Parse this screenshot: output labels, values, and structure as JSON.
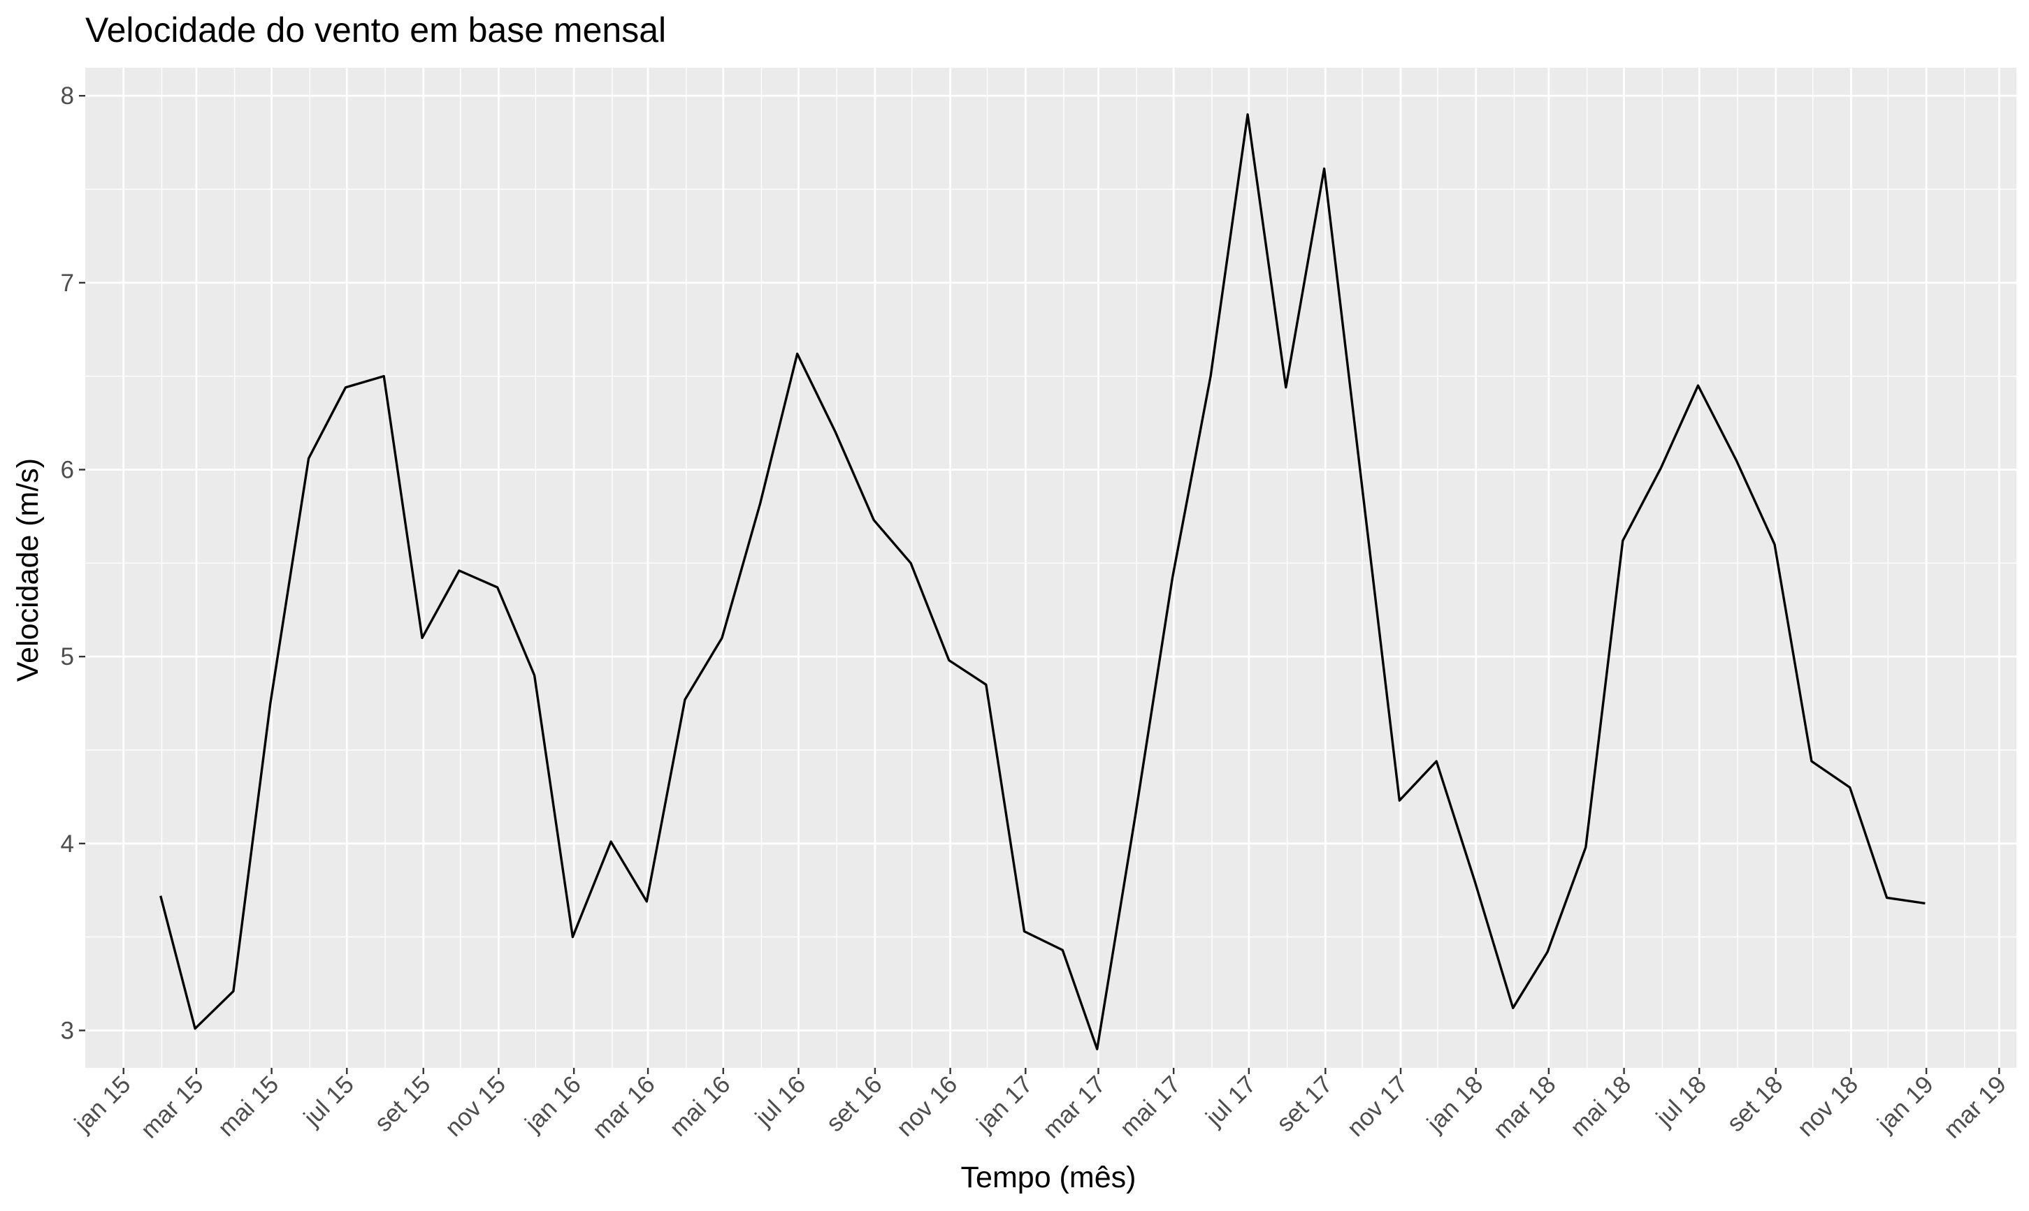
{
  "chart_data": {
    "type": "line",
    "title": "Velocidade do vento em base mensal",
    "xlabel": "Tempo (mês)",
    "ylabel": "Velocidade (m/s)",
    "x_ticks": [
      "jan 15",
      "mar 15",
      "mai 15",
      "jul 15",
      "set 15",
      "nov 15",
      "jan 16",
      "mar 16",
      "mai 16",
      "jul 16",
      "set 16",
      "nov 16",
      "jan 17",
      "mar 17",
      "mai 17",
      "jul 17",
      "set 17",
      "nov 17",
      "jan 18",
      "mar 18",
      "mai 18",
      "jul 18",
      "set 18",
      "nov 18",
      "jan 19",
      "mar 19"
    ],
    "y_ticks": [
      "3",
      "4",
      "5",
      "6",
      "7",
      "8"
    ],
    "xlim": [
      "2014-12-01",
      "2019-03-15"
    ],
    "ylim": [
      2.8,
      8.15
    ],
    "grid": true,
    "panel_background": "#ebebeb",
    "grid_color": "#ffffff",
    "line_color": "#000000",
    "x": [
      "2015-01-31",
      "2015-02-28",
      "2015-03-31",
      "2015-04-30",
      "2015-05-31",
      "2015-06-30",
      "2015-07-31",
      "2015-08-31",
      "2015-09-30",
      "2015-10-31",
      "2015-11-30",
      "2015-12-31",
      "2016-01-31",
      "2016-02-29",
      "2016-03-31",
      "2016-04-30",
      "2016-05-31",
      "2016-06-30",
      "2016-07-31",
      "2016-08-31",
      "2016-09-30",
      "2016-10-31",
      "2016-11-30",
      "2016-12-31",
      "2017-01-31",
      "2017-02-28",
      "2017-03-31",
      "2017-04-30",
      "2017-05-31",
      "2017-06-30",
      "2017-07-31",
      "2017-08-31",
      "2017-09-30",
      "2017-10-31",
      "2017-11-30",
      "2017-12-31",
      "2018-01-31",
      "2018-02-28",
      "2018-03-31",
      "2018-04-30",
      "2018-05-31",
      "2018-06-30",
      "2018-07-31",
      "2018-08-31",
      "2018-09-30",
      "2018-10-31",
      "2018-11-30",
      "2018-12-31"
    ],
    "y": [
      3.72,
      3.01,
      3.21,
      4.75,
      6.06,
      6.44,
      6.5,
      5.1,
      5.46,
      5.37,
      4.9,
      3.5,
      4.01,
      3.69,
      4.77,
      5.1,
      5.82,
      6.62,
      6.2,
      5.73,
      5.5,
      4.98,
      4.85,
      3.53,
      3.43,
      2.9,
      4.15,
      5.42,
      6.5,
      7.9,
      6.44,
      7.61,
      5.95,
      4.23,
      4.44,
      3.8,
      3.12,
      3.42,
      3.98,
      5.62,
      6.01,
      6.45,
      6.05,
      5.6,
      4.44,
      4.3,
      3.71,
      3.68
    ]
  }
}
